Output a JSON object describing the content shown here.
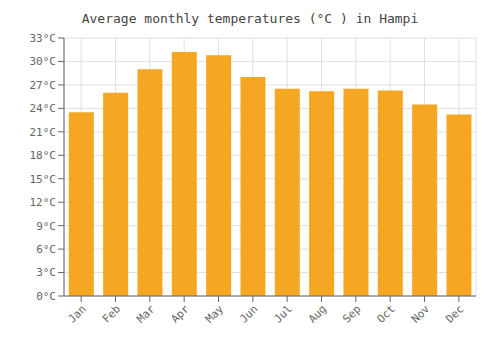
{
  "chart_data": {
    "type": "bar",
    "title": "Average monthly temperatures (°C ) in Hampi",
    "categories": [
      "Jan",
      "Feb",
      "Mar",
      "Apr",
      "May",
      "Jun",
      "Jul",
      "Aug",
      "Sep",
      "Oct",
      "Nov",
      "Dec"
    ],
    "values": [
      23.5,
      26.0,
      29.0,
      31.2,
      30.8,
      28.0,
      26.5,
      26.2,
      26.5,
      26.3,
      24.5,
      23.2
    ],
    "color": "#F5A623",
    "ylim": [
      0,
      33
    ],
    "yticks": [
      {
        "value": 0,
        "label": "0°C"
      },
      {
        "value": 3,
        "label": "3°C"
      },
      {
        "value": 6,
        "label": "6°C"
      },
      {
        "value": 9,
        "label": "9°C"
      },
      {
        "value": 12,
        "label": "12°C"
      },
      {
        "value": 15,
        "label": "15°C"
      },
      {
        "value": 18,
        "label": "18°C"
      },
      {
        "value": 21,
        "label": "21°C"
      },
      {
        "value": 24,
        "label": "24°C"
      },
      {
        "value": 27,
        "label": "27°C"
      },
      {
        "value": 30,
        "label": "30°C"
      },
      {
        "value": 33,
        "label": "33°C"
      }
    ],
    "grid": true
  }
}
